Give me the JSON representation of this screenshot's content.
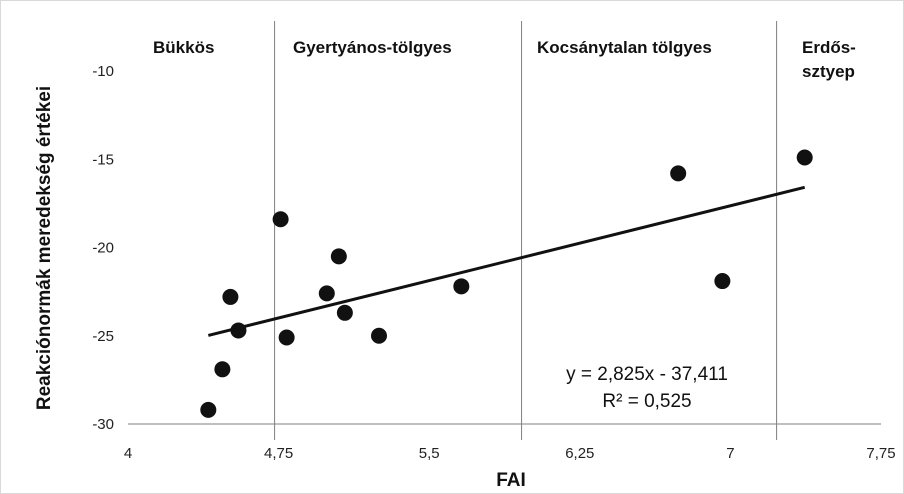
{
  "chart_data": {
    "type": "scatter",
    "xlabel": "FAI",
    "ylabel": "Reakciónormák meredekség értékei",
    "xlim": [
      4,
      7.75
    ],
    "ylim": [
      -30,
      -10
    ],
    "x_ticks": [
      {
        "value": 4,
        "label": "4"
      },
      {
        "value": 4.75,
        "label": "4,75"
      },
      {
        "value": 5.5,
        "label": "5,5"
      },
      {
        "value": 6.25,
        "label": "6,25"
      },
      {
        "value": 7,
        "label": "7"
      },
      {
        "value": 7.75,
        "label": "7,75"
      }
    ],
    "y_ticks": [
      {
        "value": -10,
        "label": "-10"
      },
      {
        "value": -15,
        "label": "-15"
      },
      {
        "value": -20,
        "label": "-20"
      },
      {
        "value": -25,
        "label": "-25"
      },
      {
        "value": -30,
        "label": "-30"
      }
    ],
    "points": [
      {
        "x": 4.4,
        "y": -29.2
      },
      {
        "x": 4.47,
        "y": -26.9
      },
      {
        "x": 4.51,
        "y": -22.8
      },
      {
        "x": 4.55,
        "y": -24.7
      },
      {
        "x": 4.76,
        "y": -18.4
      },
      {
        "x": 4.79,
        "y": -25.1
      },
      {
        "x": 4.99,
        "y": -22.6
      },
      {
        "x": 5.05,
        "y": -20.5
      },
      {
        "x": 5.08,
        "y": -23.7
      },
      {
        "x": 5.25,
        "y": -25.0
      },
      {
        "x": 5.66,
        "y": -22.2
      },
      {
        "x": 6.74,
        "y": -15.8
      },
      {
        "x": 6.96,
        "y": -21.9
      },
      {
        "x": 7.37,
        "y": -14.9
      }
    ],
    "trendline": {
      "slope": 2.825,
      "intercept": -37.411,
      "x_range": [
        4.4,
        7.37
      ]
    },
    "vertical_dividers": [
      4.73,
      5.96,
      7.23
    ],
    "zones": [
      {
        "label": "Bükkös",
        "lines": [
          "Bükkös"
        ]
      },
      {
        "label": "Gyertyános-tölgyes",
        "lines": [
          "Gyertyános-tölgyes"
        ]
      },
      {
        "label": "Kocsánytalan tölgyes",
        "lines": [
          "Kocsánytalan tölgyes"
        ]
      },
      {
        "label": "Erdős-sztyep",
        "lines": [
          "Erdős-",
          "sztyep"
        ]
      }
    ],
    "annotation": {
      "equation": "y = 2,825x - 37,411",
      "r2": "R² = 0,525"
    },
    "grid": false,
    "legend": "none",
    "colors": {
      "marker": "#111111",
      "trendline": "#111111",
      "divider": "#7f7f7f",
      "axis": "#7f7f7f"
    }
  }
}
